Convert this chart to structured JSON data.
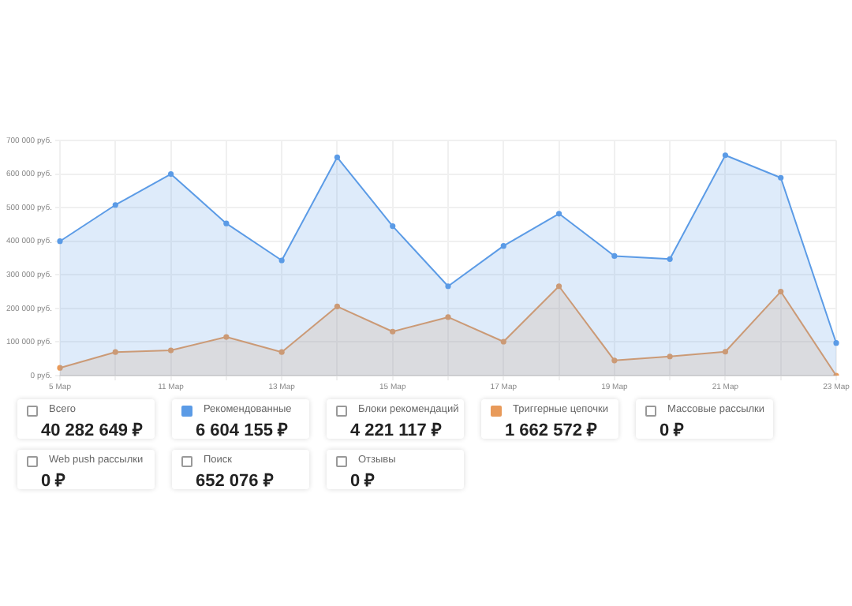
{
  "chart_data": {
    "type": "area",
    "categories": [
      "5 Мар",
      null,
      "11 Мар",
      null,
      "13 Мар",
      null,
      "15 Мар",
      null,
      "17 Мар",
      null,
      "19 Мар",
      null,
      "21 Мар",
      null,
      "23 Мар"
    ],
    "series": [
      {
        "color": "#5b9be6",
        "values": [
          400000,
          508000,
          600000,
          453000,
          343000,
          650000,
          445000,
          266000,
          386000,
          482000,
          356000,
          347000,
          656000,
          589000,
          97000
        ]
      },
      {
        "color": "#e89a5a",
        "values": [
          23000,
          70000,
          75000,
          115000,
          70000,
          206000,
          131000,
          174000,
          101000,
          266000,
          45000,
          57000,
          71000,
          250000,
          0
        ]
      }
    ],
    "ylim": [
      0,
      700000
    ],
    "yticks": [
      {
        "value": 0,
        "label": "0 руб."
      },
      {
        "value": 100000,
        "label": "100 000 руб."
      },
      {
        "value": 200000,
        "label": "200 000 руб."
      },
      {
        "value": 300000,
        "label": "300 000 руб."
      },
      {
        "value": 400000,
        "label": "400 000 руб."
      },
      {
        "value": 500000,
        "label": "500 000 руб."
      },
      {
        "value": 600000,
        "label": "600 000 руб."
      },
      {
        "value": 700000,
        "label": "700 000 руб."
      }
    ],
    "grid": true,
    "marker": "circle",
    "annotations": [
      "Всего",
      "40 282 649 ₽",
      "Рекомендованные",
      "6 604 155 ₽",
      "Блоки рекомендаций",
      "4 221 117 ₽",
      "Триггерные цепочки",
      "1 662 572 ₽",
      "Массовые рассылки",
      "0 ₽",
      "Web push рассылки",
      "0 ₽",
      "Поиск",
      "652 076 ₽",
      "Отзывы",
      "0 ₽"
    ]
  }
}
